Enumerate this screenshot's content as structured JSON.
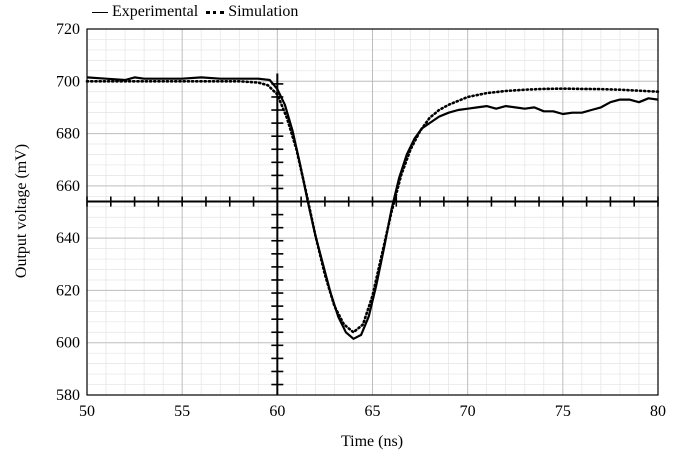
{
  "chart_data": {
    "type": "line",
    "title": "",
    "xlabel": "Time (ns)",
    "ylabel": "Output voltage (mV)",
    "xlim": [
      50,
      80
    ],
    "ylim": [
      580,
      720
    ],
    "xticks": [
      50,
      55,
      60,
      65,
      70,
      75,
      80
    ],
    "yticks": [
      580,
      600,
      620,
      640,
      660,
      680,
      700,
      720
    ],
    "grid": true,
    "legend_position": "top-left, above plot",
    "crosshair": {
      "x": 60,
      "y": 654
    },
    "series": [
      {
        "name": "Experimental",
        "style": "solid",
        "color": "#000000",
        "x": [
          50,
          51,
          52,
          52.5,
          53,
          54,
          55,
          56,
          57,
          58,
          59,
          59.6,
          60,
          60.4,
          60.8,
          61.2,
          61.6,
          62,
          62.4,
          62.8,
          63.2,
          63.6,
          64,
          64.4,
          64.8,
          65.2,
          65.6,
          66,
          66.4,
          66.8,
          67.2,
          67.6,
          68,
          68.5,
          69,
          69.5,
          70,
          70.5,
          71,
          71.5,
          72,
          72.5,
          73,
          73.5,
          74,
          74.5,
          75,
          75.5,
          76,
          76.5,
          77,
          77.5,
          78,
          78.5,
          79,
          79.5,
          80
        ],
        "values": [
          701.5,
          701,
          700.5,
          701.5,
          701,
          701,
          701,
          701.5,
          701,
          701,
          701,
          700.5,
          697,
          691,
          681,
          668,
          654,
          641,
          630,
          619,
          610,
          604,
          601.5,
          603,
          610,
          622,
          636,
          651,
          663,
          672,
          678,
          682,
          684,
          686.5,
          688,
          689,
          689.5,
          690,
          690.5,
          689.5,
          690.5,
          690,
          689.5,
          690,
          688.5,
          688.5,
          687.5,
          688,
          688,
          689,
          690,
          692,
          693,
          693,
          692,
          693.5,
          693
        ]
      },
      {
        "name": "Simulation",
        "style": "dotted",
        "color": "#000000",
        "x": [
          50,
          52,
          54,
          56,
          58,
          59,
          59.5,
          60,
          60.5,
          61,
          61.5,
          62,
          62.5,
          63,
          63.5,
          64,
          64.5,
          65,
          65.5,
          66,
          66.5,
          67,
          67.5,
          68,
          68.5,
          69,
          70,
          71,
          72,
          73,
          74,
          75,
          76,
          77,
          78,
          79,
          80
        ],
        "values": [
          700,
          700,
          700,
          700,
          700,
          699.5,
          698.5,
          695,
          686,
          674,
          658,
          641,
          626,
          614,
          607,
          604,
          607,
          618,
          634,
          650,
          664,
          674,
          681,
          686,
          689,
          691,
          694,
          695.5,
          696.3,
          696.8,
          697.1,
          697.2,
          697.1,
          697,
          696.8,
          696.4,
          696
        ]
      }
    ]
  }
}
